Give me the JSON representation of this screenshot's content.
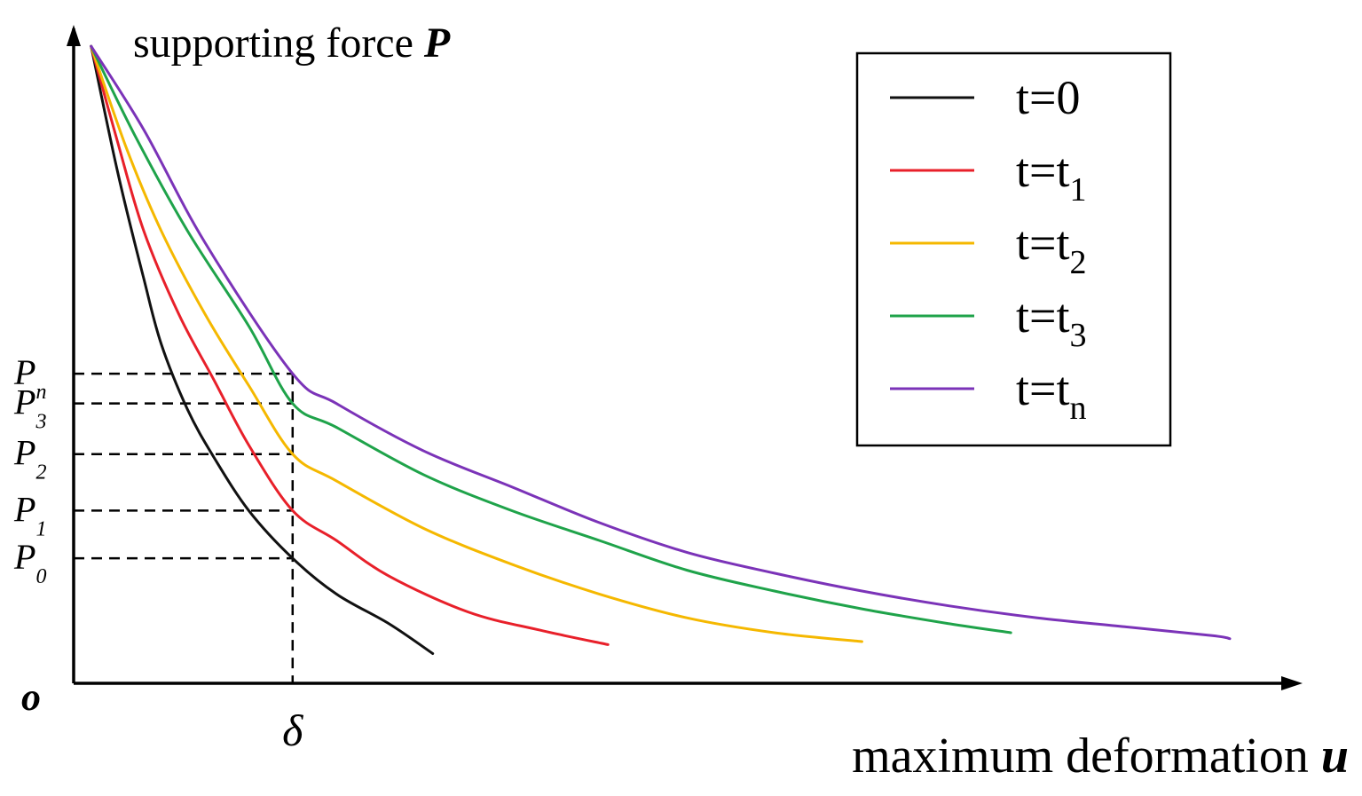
{
  "chart_data": {
    "type": "line",
    "ylabel": "supporting force",
    "ylabel_symbol": "P",
    "xlabel": "maximum deformation",
    "xlabel_symbol": "u",
    "origin_label": "o",
    "x_marker": {
      "label": "δ",
      "x": 2.5
    },
    "xlim": [
      0,
      14
    ],
    "ylim": [
      0,
      11
    ],
    "grid": false,
    "legend_position": "top-right",
    "y_markers": [
      {
        "base": "P",
        "sub": "n",
        "value": 5.2
      },
      {
        "base": "P",
        "sub": "3",
        "value": 4.7
      },
      {
        "base": "P",
        "sub": "2",
        "value": 3.85
      },
      {
        "base": "P",
        "sub": "1",
        "value": 2.9
      },
      {
        "base": "P",
        "sub": "0",
        "value": 2.1
      }
    ],
    "series": [
      {
        "name": "t=0",
        "name_base": "t=",
        "name_sub": "0",
        "sub_style": "inline",
        "color": "#111111",
        "points": [
          [
            0.2,
            10.7
          ],
          [
            0.5,
            8.6
          ],
          [
            0.8,
            6.8
          ],
          [
            1.0,
            5.7
          ],
          [
            1.3,
            4.6
          ],
          [
            1.6,
            3.8
          ],
          [
            2.0,
            2.9
          ],
          [
            2.5,
            2.1
          ],
          [
            3.0,
            1.5
          ],
          [
            3.6,
            1.0
          ],
          [
            4.1,
            0.5
          ]
        ]
      },
      {
        "name": "t=t1",
        "name_base": "t=t",
        "name_sub": "1",
        "sub_style": "subscript",
        "color": "#e8202a",
        "points": [
          [
            0.2,
            10.7
          ],
          [
            0.5,
            9.1
          ],
          [
            0.8,
            7.6
          ],
          [
            1.2,
            6.2
          ],
          [
            1.6,
            5.1
          ],
          [
            2.0,
            4.0
          ],
          [
            2.5,
            2.9
          ],
          [
            3.0,
            2.4
          ],
          [
            3.6,
            1.8
          ],
          [
            4.5,
            1.2
          ],
          [
            5.3,
            0.9
          ],
          [
            6.1,
            0.65
          ]
        ]
      },
      {
        "name": "t=t2",
        "name_base": "t=t",
        "name_sub": "2",
        "sub_style": "subscript",
        "color": "#f5b800",
        "points": [
          [
            0.2,
            10.7
          ],
          [
            0.6,
            9.0
          ],
          [
            1.0,
            7.6
          ],
          [
            1.5,
            6.2
          ],
          [
            2.0,
            5.0
          ],
          [
            2.5,
            3.85
          ],
          [
            3.0,
            3.4
          ],
          [
            4.0,
            2.6
          ],
          [
            5.0,
            2.0
          ],
          [
            6.0,
            1.5
          ],
          [
            7.0,
            1.1
          ],
          [
            8.0,
            0.85
          ],
          [
            9.0,
            0.7
          ]
        ]
      },
      {
        "name": "t=t3",
        "name_base": "t=t",
        "name_sub": "3",
        "sub_style": "subscript",
        "color": "#1fa34a",
        "points": [
          [
            0.2,
            10.7
          ],
          [
            0.7,
            9.2
          ],
          [
            1.3,
            7.6
          ],
          [
            2.0,
            6.0
          ],
          [
            2.5,
            4.7
          ],
          [
            3.0,
            4.3
          ],
          [
            4.0,
            3.5
          ],
          [
            5.0,
            2.9
          ],
          [
            6.0,
            2.4
          ],
          [
            7.0,
            1.9
          ],
          [
            8.0,
            1.55
          ],
          [
            9.0,
            1.25
          ],
          [
            10.0,
            1.0
          ],
          [
            10.7,
            0.85
          ]
        ]
      },
      {
        "name": "t=tn",
        "name_base": "t=t",
        "name_sub": "n",
        "sub_style": "subscript",
        "color": "#7b33b8",
        "points": [
          [
            0.2,
            10.7
          ],
          [
            0.8,
            9.3
          ],
          [
            1.5,
            7.4
          ],
          [
            2.5,
            5.2
          ],
          [
            3.0,
            4.7
          ],
          [
            4.0,
            3.9
          ],
          [
            5.0,
            3.3
          ],
          [
            6.0,
            2.7
          ],
          [
            7.0,
            2.2
          ],
          [
            8.0,
            1.85
          ],
          [
            9.0,
            1.55
          ],
          [
            10.0,
            1.3
          ],
          [
            11.0,
            1.1
          ],
          [
            12.0,
            0.95
          ],
          [
            13.0,
            0.8
          ],
          [
            13.2,
            0.75
          ]
        ]
      }
    ]
  }
}
